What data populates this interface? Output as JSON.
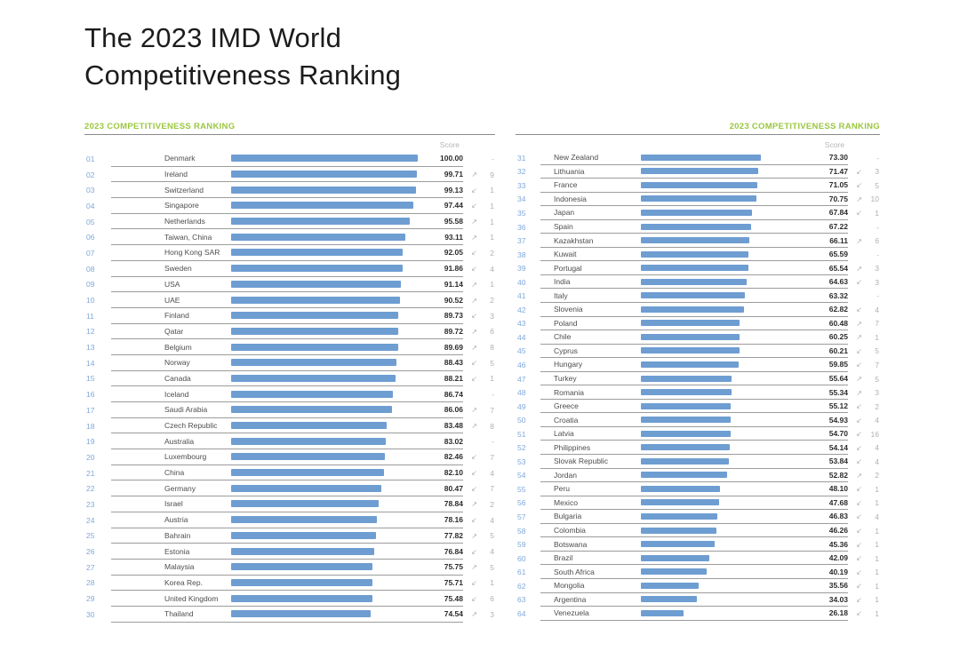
{
  "title": {
    "line1": "The 2023 IMD World",
    "line2": "Competitiveness Ranking"
  },
  "panel_header_label": "2023 COMPETITIVENESS RANKING",
  "score_column_label": "Score",
  "colors": {
    "accent_green": "#9BC63F",
    "bar_blue": "#6E9DD2",
    "rank_blue": "#7FA8D9",
    "line_gray": "#9C9C9C"
  },
  "trend_icons": {
    "up": "↗",
    "down": "↙",
    "none": ""
  },
  "chart_data": {
    "type": "bar",
    "title": "The 2023 IMD World Competitiveness Ranking",
    "xlabel": "Score",
    "score_range": [
      0,
      100
    ],
    "legend": "none",
    "panels": [
      {
        "header": "2023 COMPETITIVENESS RANKING",
        "score_label": "Score",
        "rows": [
          {
            "rank": "01",
            "country": "Denmark",
            "score": "100.00",
            "trend": "none",
            "change": "-"
          },
          {
            "rank": "02",
            "country": "Ireland",
            "score": "99.71",
            "trend": "up",
            "change": "9"
          },
          {
            "rank": "03",
            "country": "Switzerland",
            "score": "99.13",
            "trend": "down",
            "change": "1"
          },
          {
            "rank": "04",
            "country": "Singapore",
            "score": "97.44",
            "trend": "down",
            "change": "1"
          },
          {
            "rank": "05",
            "country": "Netherlands",
            "score": "95.58",
            "trend": "up",
            "change": "1"
          },
          {
            "rank": "06",
            "country": "Taiwan, China",
            "score": "93.11",
            "trend": "up",
            "change": "1"
          },
          {
            "rank": "07",
            "country": "Hong Kong SAR",
            "score": "92.05",
            "trend": "down",
            "change": "2"
          },
          {
            "rank": "08",
            "country": "Sweden",
            "score": "91.86",
            "trend": "down",
            "change": "4"
          },
          {
            "rank": "09",
            "country": "USA",
            "score": "91.14",
            "trend": "up",
            "change": "1"
          },
          {
            "rank": "10",
            "country": "UAE",
            "score": "90.52",
            "trend": "up",
            "change": "2"
          },
          {
            "rank": "11",
            "country": "Finland",
            "score": "89.73",
            "trend": "down",
            "change": "3"
          },
          {
            "rank": "12",
            "country": "Qatar",
            "score": "89.72",
            "trend": "up",
            "change": "6"
          },
          {
            "rank": "13",
            "country": "Belgium",
            "score": "89.69",
            "trend": "up",
            "change": "8"
          },
          {
            "rank": "14",
            "country": "Norway",
            "score": "88.43",
            "trend": "down",
            "change": "5"
          },
          {
            "rank": "15",
            "country": "Canada",
            "score": "88.21",
            "trend": "down",
            "change": "1"
          },
          {
            "rank": "16",
            "country": "Iceland",
            "score": "86.74",
            "trend": "none",
            "change": "-"
          },
          {
            "rank": "17",
            "country": "Saudi Arabia",
            "score": "86.06",
            "trend": "up",
            "change": "7"
          },
          {
            "rank": "18",
            "country": "Czech Republic",
            "score": "83.48",
            "trend": "up",
            "change": "8"
          },
          {
            "rank": "19",
            "country": "Australia",
            "score": "83.02",
            "trend": "none",
            "change": "-"
          },
          {
            "rank": "20",
            "country": "Luxembourg",
            "score": "82.46",
            "trend": "down",
            "change": "7"
          },
          {
            "rank": "21",
            "country": "China",
            "score": "82.10",
            "trend": "down",
            "change": "4"
          },
          {
            "rank": "22",
            "country": "Germany",
            "score": "80.47",
            "trend": "down",
            "change": "7"
          },
          {
            "rank": "23",
            "country": "Israel",
            "score": "78.84",
            "trend": "up",
            "change": "2"
          },
          {
            "rank": "24",
            "country": "Austria",
            "score": "78.16",
            "trend": "down",
            "change": "4"
          },
          {
            "rank": "25",
            "country": "Bahrain",
            "score": "77.82",
            "trend": "up",
            "change": "5"
          },
          {
            "rank": "26",
            "country": "Estonia",
            "score": "76.84",
            "trend": "down",
            "change": "4"
          },
          {
            "rank": "27",
            "country": "Malaysia",
            "score": "75.75",
            "trend": "up",
            "change": "5"
          },
          {
            "rank": "28",
            "country": "Korea Rep.",
            "score": "75.71",
            "trend": "down",
            "change": "1"
          },
          {
            "rank": "29",
            "country": "United Kingdom",
            "score": "75.48",
            "trend": "down",
            "change": "6"
          },
          {
            "rank": "30",
            "country": "Thailand",
            "score": "74.54",
            "trend": "up",
            "change": "3"
          }
        ]
      },
      {
        "header": "2023 COMPETITIVENESS RANKING",
        "score_label": "Score",
        "rows": [
          {
            "rank": "31",
            "country": "New Zealand",
            "score": "73.30",
            "trend": "none",
            "change": "-"
          },
          {
            "rank": "32",
            "country": "Lithuania",
            "score": "71.47",
            "trend": "down",
            "change": "3"
          },
          {
            "rank": "33",
            "country": "France",
            "score": "71.05",
            "trend": "down",
            "change": "5"
          },
          {
            "rank": "34",
            "country": "Indonesia",
            "score": "70.75",
            "trend": "up",
            "change": "10"
          },
          {
            "rank": "35",
            "country": "Japan",
            "score": "67.84",
            "trend": "down",
            "change": "1"
          },
          {
            "rank": "36",
            "country": "Spain",
            "score": "67.22",
            "trend": "none",
            "change": "-"
          },
          {
            "rank": "37",
            "country": "Kazakhstan",
            "score": "66.11",
            "trend": "up",
            "change": "6"
          },
          {
            "rank": "38",
            "country": "Kuwait",
            "score": "65.59",
            "trend": "none",
            "change": "-"
          },
          {
            "rank": "39",
            "country": "Portugal",
            "score": "65.54",
            "trend": "up",
            "change": "3"
          },
          {
            "rank": "40",
            "country": "India",
            "score": "64.63",
            "trend": "down",
            "change": "3"
          },
          {
            "rank": "41",
            "country": "Italy",
            "score": "63.32",
            "trend": "none",
            "change": "-"
          },
          {
            "rank": "42",
            "country": "Slovenia",
            "score": "62.82",
            "trend": "down",
            "change": "4"
          },
          {
            "rank": "43",
            "country": "Poland",
            "score": "60.48",
            "trend": "up",
            "change": "7"
          },
          {
            "rank": "44",
            "country": "Chile",
            "score": "60.25",
            "trend": "up",
            "change": "1"
          },
          {
            "rank": "45",
            "country": "Cyprus",
            "score": "60.21",
            "trend": "down",
            "change": "5"
          },
          {
            "rank": "46",
            "country": "Hungary",
            "score": "59.85",
            "trend": "down",
            "change": "7"
          },
          {
            "rank": "47",
            "country": "Turkey",
            "score": "55.64",
            "trend": "up",
            "change": "5"
          },
          {
            "rank": "48",
            "country": "Romania",
            "score": "55.34",
            "trend": "up",
            "change": "3"
          },
          {
            "rank": "49",
            "country": "Greece",
            "score": "55.12",
            "trend": "down",
            "change": "2"
          },
          {
            "rank": "50",
            "country": "Croatia",
            "score": "54.93",
            "trend": "down",
            "change": "4"
          },
          {
            "rank": "51",
            "country": "Latvia",
            "score": "54.70",
            "trend": "down",
            "change": "16"
          },
          {
            "rank": "52",
            "country": "Philippines",
            "score": "54.14",
            "trend": "down",
            "change": "4"
          },
          {
            "rank": "53",
            "country": "Slovak Republic",
            "score": "53.84",
            "trend": "down",
            "change": "4"
          },
          {
            "rank": "54",
            "country": "Jordan",
            "score": "52.82",
            "trend": "up",
            "change": "2"
          },
          {
            "rank": "55",
            "country": "Peru",
            "score": "48.10",
            "trend": "down",
            "change": "1"
          },
          {
            "rank": "56",
            "country": "Mexico",
            "score": "47.68",
            "trend": "down",
            "change": "1"
          },
          {
            "rank": "57",
            "country": "Bulgaria",
            "score": "46.83",
            "trend": "down",
            "change": "4"
          },
          {
            "rank": "58",
            "country": "Colombia",
            "score": "46.26",
            "trend": "down",
            "change": "1"
          },
          {
            "rank": "59",
            "country": "Botswana",
            "score": "45.36",
            "trend": "down",
            "change": "1"
          },
          {
            "rank": "60",
            "country": "Brazil",
            "score": "42.09",
            "trend": "down",
            "change": "1"
          },
          {
            "rank": "61",
            "country": "South Africa",
            "score": "40.19",
            "trend": "down",
            "change": "1"
          },
          {
            "rank": "62",
            "country": "Mongolia",
            "score": "35.56",
            "trend": "down",
            "change": "1"
          },
          {
            "rank": "63",
            "country": "Argentina",
            "score": "34.03",
            "trend": "down",
            "change": "1"
          },
          {
            "rank": "64",
            "country": "Venezuela",
            "score": "26.18",
            "trend": "down",
            "change": "1"
          }
        ]
      }
    ]
  }
}
